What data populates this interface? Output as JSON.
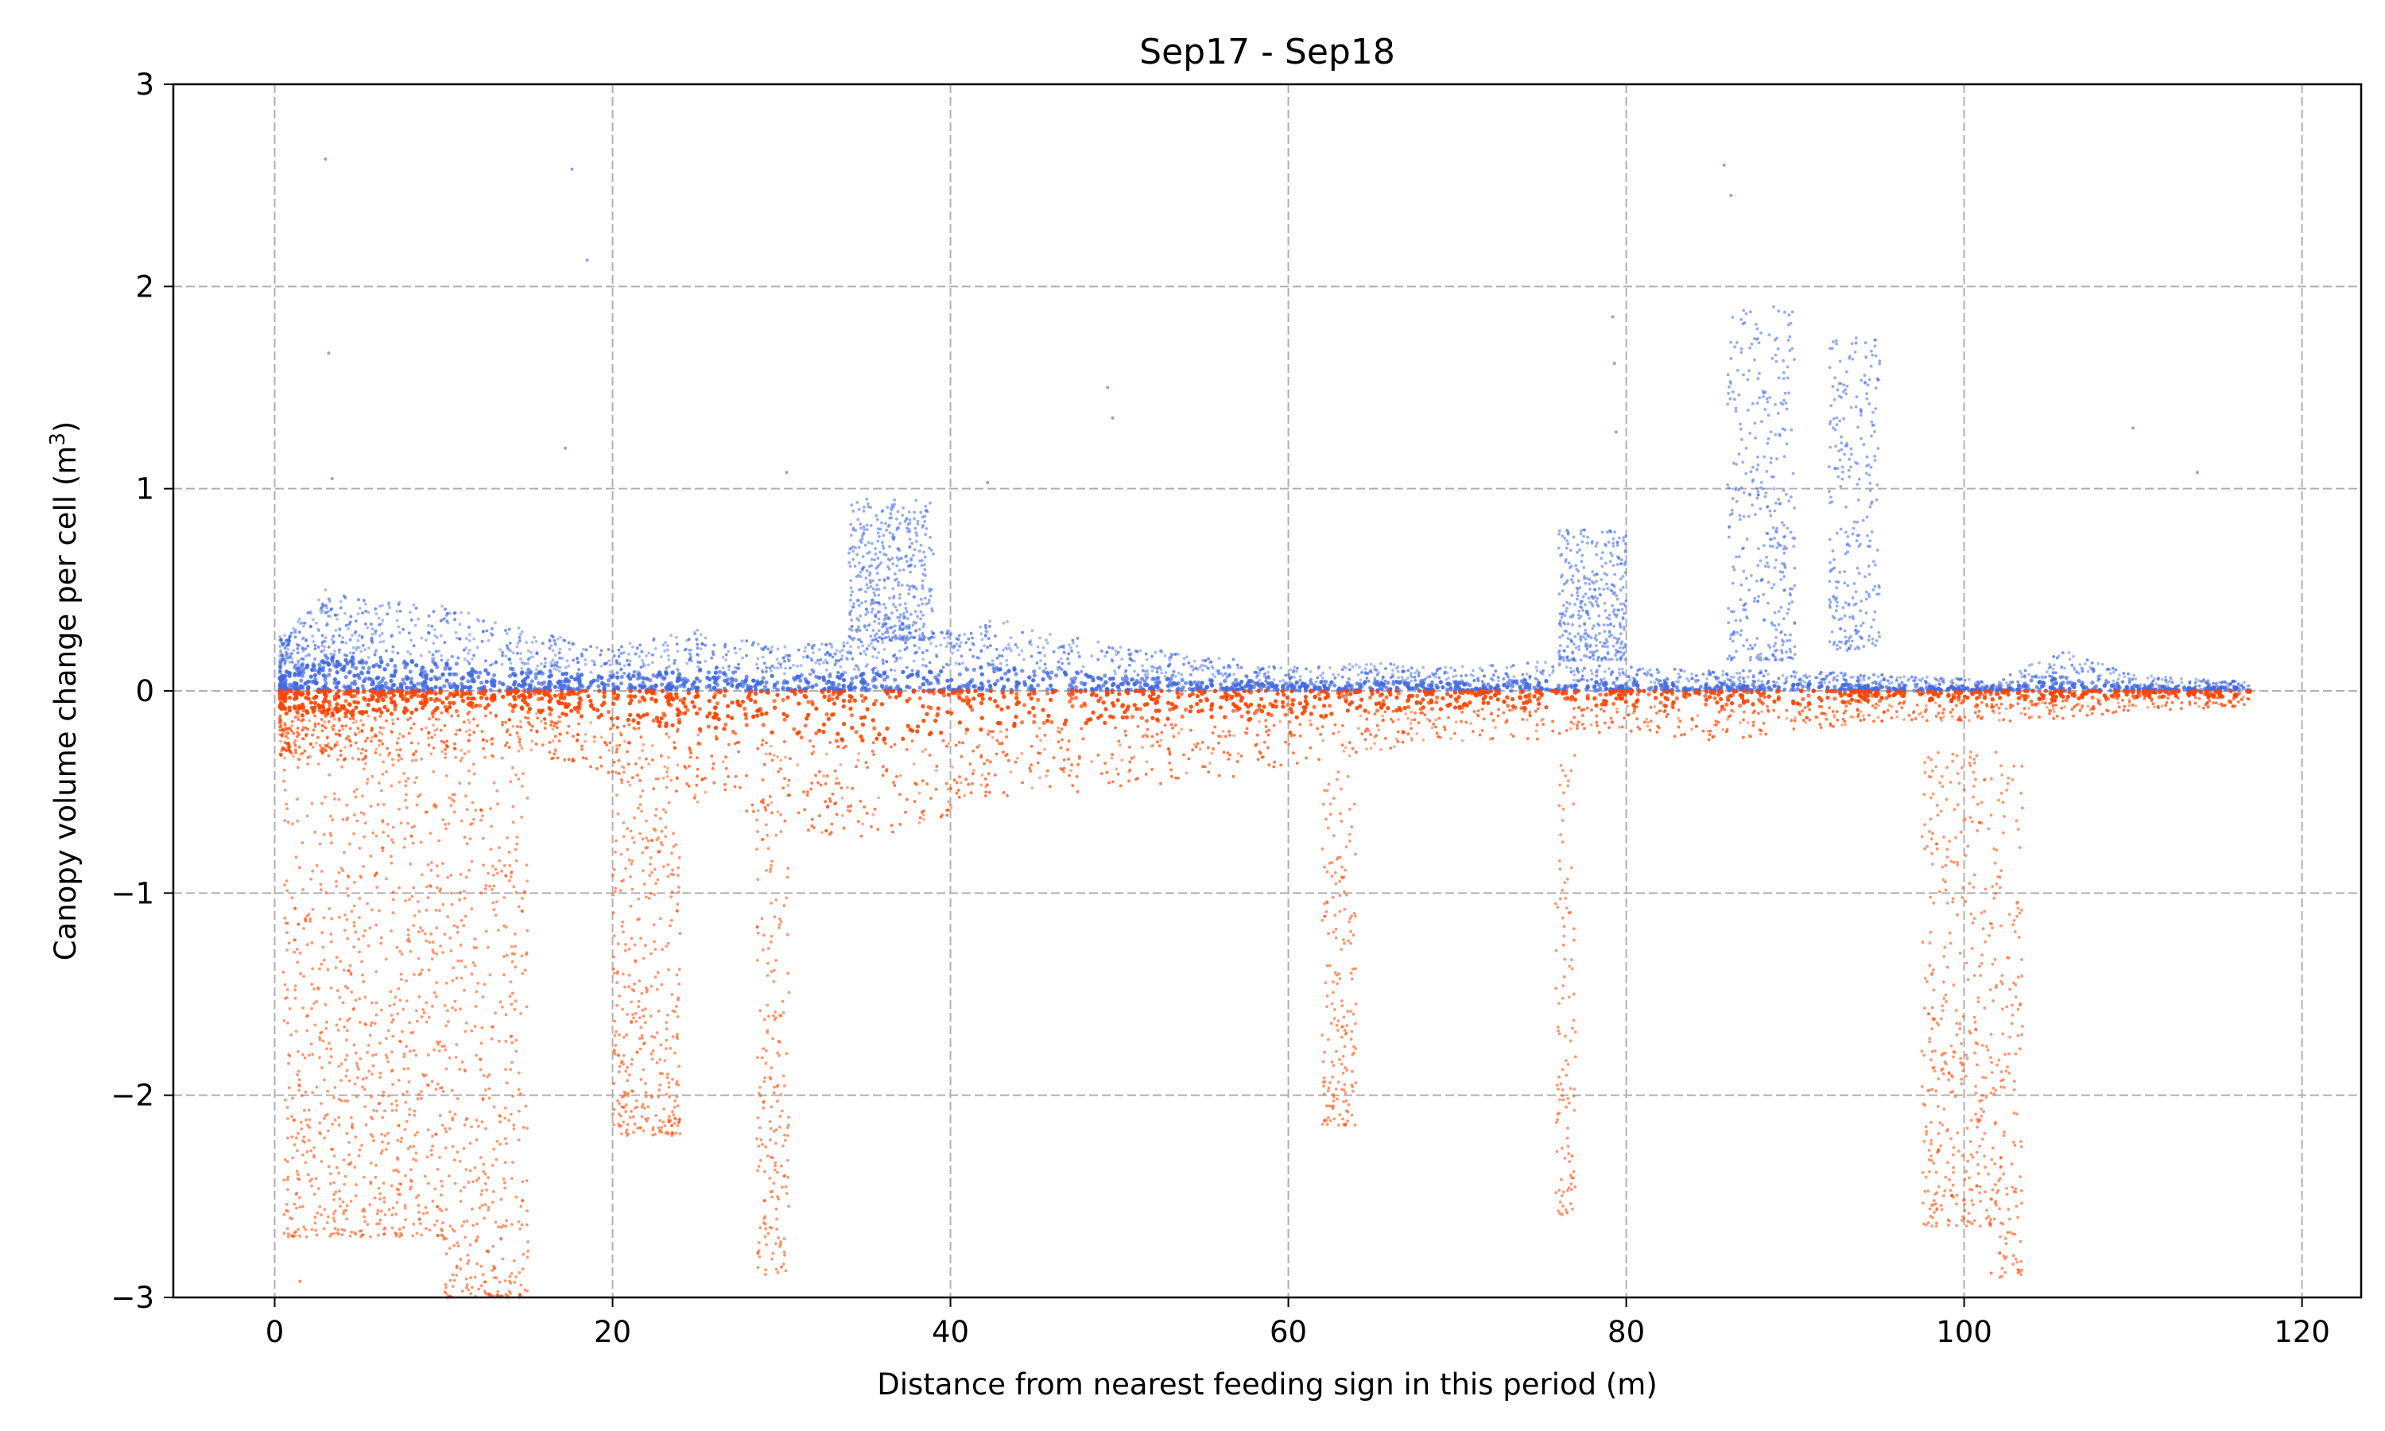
{
  "chart_data": {
    "type": "scatter",
    "title": "Sep17 - Sep18",
    "xlabel": "Distance from nearest feeding sign in this period (m)",
    "ylabel_main": "Canopy volume change per cell (m",
    "ylabel_sup": "3",
    "ylabel_close": ")",
    "xlim": [
      -6,
      123.5
    ],
    "ylim": [
      -3,
      3
    ],
    "x_ticks": [
      0,
      20,
      40,
      60,
      80,
      100,
      120
    ],
    "x_tick_labels": [
      "0",
      "20",
      "40",
      "60",
      "80",
      "100",
      "120"
    ],
    "y_ticks": [
      -3,
      -2,
      -1,
      0,
      1,
      2,
      3
    ],
    "y_tick_labels": [
      "−3",
      "−2",
      "−1",
      "0",
      "1",
      "2",
      "3"
    ],
    "grid": true,
    "grid_style": "dashed",
    "legend": "none",
    "series": [
      {
        "sign": "positive",
        "color": "#4169e1",
        "envelope": [
          {
            "x": 0.5,
            "y": 0.28
          },
          {
            "x": 3,
            "y": 0.5
          },
          {
            "x": 6,
            "y": 0.45
          },
          {
            "x": 10,
            "y": 0.42
          },
          {
            "x": 15,
            "y": 0.3
          },
          {
            "x": 20,
            "y": 0.22
          },
          {
            "x": 25,
            "y": 0.3
          },
          {
            "x": 30,
            "y": 0.22
          },
          {
            "x": 35,
            "y": 0.25
          },
          {
            "x": 40,
            "y": 0.3
          },
          {
            "x": 43,
            "y": 0.36
          },
          {
            "x": 48,
            "y": 0.25
          },
          {
            "x": 55,
            "y": 0.18
          },
          {
            "x": 60,
            "y": 0.12
          },
          {
            "x": 65,
            "y": 0.14
          },
          {
            "x": 70,
            "y": 0.12
          },
          {
            "x": 75,
            "y": 0.15
          },
          {
            "x": 80,
            "y": 0.12
          },
          {
            "x": 85,
            "y": 0.1
          },
          {
            "x": 90,
            "y": 0.1
          },
          {
            "x": 95,
            "y": 0.08
          },
          {
            "x": 100,
            "y": 0.06
          },
          {
            "x": 102,
            "y": 0.04
          },
          {
            "x": 104,
            "y": 0.15
          },
          {
            "x": 106,
            "y": 0.2
          },
          {
            "x": 110,
            "y": 0.08
          },
          {
            "x": 115,
            "y": 0.05
          }
        ],
        "clusters": [
          {
            "x_start": 34,
            "x_end": 39,
            "y_min": 0.25,
            "y_max": 0.95
          },
          {
            "x_start": 76,
            "x_end": 80,
            "y_min": 0.15,
            "y_max": 0.8
          },
          {
            "x_start": 86,
            "x_end": 90,
            "y_min": 0.15,
            "y_max": 1.9
          },
          {
            "x_start": 92,
            "x_end": 95,
            "y_min": 0.2,
            "y_max": 1.75
          }
        ],
        "outliers": [
          {
            "x": 3,
            "y": 2.63
          },
          {
            "x": 17.6,
            "y": 2.58
          },
          {
            "x": 18.5,
            "y": 2.13
          },
          {
            "x": 85.8,
            "y": 2.6
          },
          {
            "x": 86.2,
            "y": 2.45
          },
          {
            "x": 3.2,
            "y": 1.67
          },
          {
            "x": 79.2,
            "y": 1.85
          },
          {
            "x": 79.3,
            "y": 1.62
          },
          {
            "x": 79.4,
            "y": 1.28
          },
          {
            "x": 87,
            "y": 1.82
          },
          {
            "x": 93.6,
            "y": 1.72
          },
          {
            "x": 94.2,
            "y": 1.65
          },
          {
            "x": 49.3,
            "y": 1.5
          },
          {
            "x": 49.6,
            "y": 1.35
          },
          {
            "x": 17.2,
            "y": 1.2
          },
          {
            "x": 30.3,
            "y": 1.08
          },
          {
            "x": 110,
            "y": 1.3
          },
          {
            "x": 113.8,
            "y": 1.08
          },
          {
            "x": 3.4,
            "y": 1.05
          },
          {
            "x": 42.2,
            "y": 1.03
          }
        ]
      },
      {
        "sign": "negative",
        "color": "#ff4500",
        "envelope": [
          {
            "x": 0.5,
            "y": -0.35
          },
          {
            "x": 5,
            "y": -0.35
          },
          {
            "x": 10,
            "y": -0.3
          },
          {
            "x": 15,
            "y": -0.3
          },
          {
            "x": 20,
            "y": -0.45
          },
          {
            "x": 25,
            "y": -0.55
          },
          {
            "x": 30,
            "y": -0.65
          },
          {
            "x": 34,
            "y": -0.75
          },
          {
            "x": 38,
            "y": -0.68
          },
          {
            "x": 42,
            "y": -0.55
          },
          {
            "x": 46,
            "y": -0.5
          },
          {
            "x": 50,
            "y": -0.5
          },
          {
            "x": 55,
            "y": -0.45
          },
          {
            "x": 60,
            "y": -0.4
          },
          {
            "x": 65,
            "y": -0.3
          },
          {
            "x": 70,
            "y": -0.25
          },
          {
            "x": 75,
            "y": -0.25
          },
          {
            "x": 80,
            "y": -0.2
          },
          {
            "x": 85,
            "y": -0.25
          },
          {
            "x": 90,
            "y": -0.2
          },
          {
            "x": 95,
            "y": -0.15
          },
          {
            "x": 100,
            "y": -0.15
          },
          {
            "x": 105,
            "y": -0.15
          },
          {
            "x": 110,
            "y": -0.1
          },
          {
            "x": 116,
            "y": -0.08
          }
        ],
        "clusters": [
          {
            "x_start": 0.5,
            "x_end": 5,
            "y_min": -2.7,
            "y_max": -0.2
          },
          {
            "x_start": 5,
            "x_end": 10,
            "y_min": -2.7,
            "y_max": -0.3
          },
          {
            "x_start": 10,
            "x_end": 15,
            "y_min": -3.0,
            "y_max": -0.3
          },
          {
            "x_start": 20,
            "x_end": 24,
            "y_min": -2.2,
            "y_max": -0.4
          },
          {
            "x_start": 28.5,
            "x_end": 30.5,
            "y_min": -2.9,
            "y_max": -0.6
          },
          {
            "x_start": 62,
            "x_end": 64,
            "y_min": -2.15,
            "y_max": -0.4
          },
          {
            "x_start": 75.8,
            "x_end": 77,
            "y_min": -2.6,
            "y_max": -0.3
          },
          {
            "x_start": 97.5,
            "x_end": 102,
            "y_min": -2.65,
            "y_max": -0.3
          },
          {
            "x_start": 102,
            "x_end": 103.5,
            "y_min": -2.9,
            "y_max": -0.3
          }
        ],
        "outliers": [
          {
            "x": 12.5,
            "y": -2.98
          },
          {
            "x": 1.5,
            "y": -2.92
          },
          {
            "x": 30,
            "y": -2.85
          },
          {
            "x": 76.5,
            "y": -2.58
          },
          {
            "x": 101.6,
            "y": -2.88
          },
          {
            "x": 76.8,
            "y": -2.3
          }
        ]
      }
    ]
  }
}
